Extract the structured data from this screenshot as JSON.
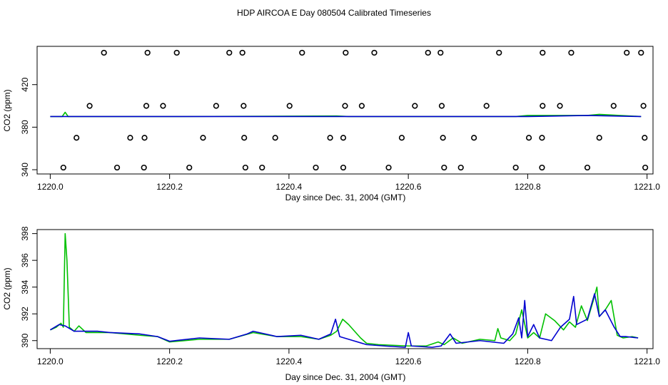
{
  "title": "HDP AIRCOA E  Day 080504  Calibrated Timeseries",
  "chart_data": [
    {
      "type": "scatter",
      "xlabel": "Day since Dec. 31, 2004 (GMT)",
      "ylabel": "CO2 (ppm)",
      "xlim": [
        1219.978,
        1221.01
      ],
      "ylim": [
        336,
        456
      ],
      "xticks": [
        "1220.0",
        "1220.2",
        "1220.4",
        "1220.6",
        "1220.8",
        "1221.0"
      ],
      "yticks": [
        "340",
        "380",
        "420"
      ],
      "flat_level": 390,
      "series": [
        {
          "color": "#00c000",
          "values": [
            [
              1220.0,
              390
            ],
            [
              1220.02,
              390
            ],
            [
              1220.025,
              394
            ],
            [
              1220.03,
              390
            ],
            [
              1220.2,
              390
            ],
            [
              1220.48,
              390.5
            ],
            [
              1220.5,
              390
            ],
            [
              1220.78,
              390
            ],
            [
              1220.8,
              391
            ],
            [
              1220.9,
              391
            ],
            [
              1220.92,
              392
            ],
            [
              1220.99,
              390
            ]
          ]
        },
        {
          "color": "#0000d0",
          "values": [
            [
              1220.0,
              390
            ],
            [
              1220.2,
              390
            ],
            [
              1220.5,
              390
            ],
            [
              1220.8,
              390
            ],
            [
              1220.9,
              391
            ],
            [
              1220.99,
              390
            ]
          ]
        }
      ],
      "points_x": [
        [
          1220.09,
          1220.163,
          1220.212,
          1220.3,
          1220.322,
          1220.422,
          1220.495,
          1220.543,
          1220.633,
          1220.654,
          1220.752,
          1220.825,
          1220.873,
          1220.966,
          1220.99
        ],
        [
          1220.066,
          1220.161,
          1220.189,
          1220.278,
          1220.324,
          1220.401,
          1220.494,
          1220.522,
          1220.611,
          1220.656,
          1220.731,
          1220.825,
          1220.854,
          1220.944,
          1220.994
        ],
        [
          1220.044,
          1220.134,
          1220.158,
          1220.256,
          1220.325,
          1220.377,
          1220.469,
          1220.491,
          1220.589,
          1220.658,
          1220.71,
          1220.802,
          1220.824,
          1220.92,
          1220.996
        ],
        [
          1220.022,
          1220.112,
          1220.157,
          1220.233,
          1220.327,
          1220.355,
          1220.445,
          1220.491,
          1220.567,
          1220.66,
          1220.688,
          1220.78,
          1220.824,
          1220.9,
          1220.997
        ]
      ],
      "points_y": [
        450,
        400,
        370,
        342
      ]
    },
    {
      "type": "line",
      "xlabel": "Day since Dec. 31, 2004 (GMT)",
      "ylabel": "CO2 (ppm)",
      "xlim": [
        1219.978,
        1221.01
      ],
      "ylim": [
        389.4,
        398.3
      ],
      "xticks": [
        "1220.0",
        "1220.2",
        "1220.4",
        "1220.6",
        "1220.8",
        "1221.0"
      ],
      "yticks": [
        "390",
        "392",
        "394",
        "396",
        "398"
      ],
      "series": [
        {
          "color": "#00c000",
          "values": [
            [
              1220.0,
              390.8
            ],
            [
              1220.01,
              391.0
            ],
            [
              1220.018,
              391.3
            ],
            [
              1220.022,
              391.0
            ],
            [
              1220.025,
              398.0
            ],
            [
              1220.028,
              396.0
            ],
            [
              1220.032,
              391.0
            ],
            [
              1220.04,
              390.7
            ],
            [
              1220.048,
              391.1
            ],
            [
              1220.06,
              390.6
            ],
            [
              1220.1,
              390.6
            ],
            [
              1220.15,
              390.4
            ],
            [
              1220.18,
              390.3
            ],
            [
              1220.2,
              389.9
            ],
            [
              1220.25,
              390.1
            ],
            [
              1220.3,
              390.1
            ],
            [
              1220.34,
              390.6
            ],
            [
              1220.38,
              390.3
            ],
            [
              1220.42,
              390.3
            ],
            [
              1220.45,
              390.1
            ],
            [
              1220.47,
              390.4
            ],
            [
              1220.48,
              390.7
            ],
            [
              1220.49,
              391.6
            ],
            [
              1220.5,
              391.2
            ],
            [
              1220.52,
              390.2
            ],
            [
              1220.53,
              389.8
            ],
            [
              1220.55,
              389.7
            ],
            [
              1220.6,
              389.6
            ],
            [
              1220.63,
              389.6
            ],
            [
              1220.65,
              389.9
            ],
            [
              1220.66,
              389.7
            ],
            [
              1220.675,
              390.2
            ],
            [
              1220.69,
              389.8
            ],
            [
              1220.72,
              390.1
            ],
            [
              1220.745,
              390.0
            ],
            [
              1220.75,
              390.9
            ],
            [
              1220.755,
              390.2
            ],
            [
              1220.77,
              390.0
            ],
            [
              1220.78,
              390.5
            ],
            [
              1220.79,
              392.3
            ],
            [
              1220.8,
              390.2
            ],
            [
              1220.81,
              390.6
            ],
            [
              1220.82,
              390.2
            ],
            [
              1220.83,
              392.0
            ],
            [
              1220.845,
              391.5
            ],
            [
              1220.86,
              390.8
            ],
            [
              1220.87,
              391.4
            ],
            [
              1220.88,
              391.0
            ],
            [
              1220.89,
              392.6
            ],
            [
              1220.9,
              391.5
            ],
            [
              1220.91,
              393.0
            ],
            [
              1220.916,
              394.0
            ],
            [
              1220.92,
              391.8
            ],
            [
              1220.93,
              392.3
            ],
            [
              1220.94,
              393.0
            ],
            [
              1220.95,
              390.4
            ],
            [
              1220.96,
              390.2
            ],
            [
              1220.975,
              390.3
            ],
            [
              1220.985,
              390.2
            ]
          ]
        },
        {
          "color": "#0000d0",
          "values": [
            [
              1220.0,
              390.8
            ],
            [
              1220.015,
              391.2
            ],
            [
              1220.025,
              391.1
            ],
            [
              1220.04,
              390.7
            ],
            [
              1220.08,
              390.7
            ],
            [
              1220.1,
              390.6
            ],
            [
              1220.15,
              390.5
            ],
            [
              1220.18,
              390.3
            ],
            [
              1220.2,
              389.95
            ],
            [
              1220.25,
              390.2
            ],
            [
              1220.3,
              390.1
            ],
            [
              1220.33,
              390.5
            ],
            [
              1220.34,
              390.7
            ],
            [
              1220.38,
              390.3
            ],
            [
              1220.42,
              390.4
            ],
            [
              1220.45,
              390.1
            ],
            [
              1220.47,
              390.5
            ],
            [
              1220.478,
              391.6
            ],
            [
              1220.485,
              390.3
            ],
            [
              1220.5,
              390.1
            ],
            [
              1220.53,
              389.7
            ],
            [
              1220.56,
              389.6
            ],
            [
              1220.595,
              389.5
            ],
            [
              1220.6,
              390.6
            ],
            [
              1220.605,
              389.6
            ],
            [
              1220.64,
              389.5
            ],
            [
              1220.655,
              389.6
            ],
            [
              1220.67,
              390.5
            ],
            [
              1220.68,
              389.8
            ],
            [
              1220.72,
              390.0
            ],
            [
              1220.76,
              389.8
            ],
            [
              1220.775,
              390.5
            ],
            [
              1220.785,
              391.7
            ],
            [
              1220.79,
              390.2
            ],
            [
              1220.795,
              393.0
            ],
            [
              1220.8,
              390.3
            ],
            [
              1220.81,
              391.2
            ],
            [
              1220.82,
              390.2
            ],
            [
              1220.84,
              390.0
            ],
            [
              1220.855,
              391.0
            ],
            [
              1220.87,
              391.6
            ],
            [
              1220.877,
              393.3
            ],
            [
              1220.882,
              391.2
            ],
            [
              1220.9,
              391.6
            ],
            [
              1220.912,
              393.5
            ],
            [
              1220.92,
              391.8
            ],
            [
              1220.93,
              392.3
            ],
            [
              1220.945,
              391.0
            ],
            [
              1220.955,
              390.3
            ],
            [
              1220.965,
              390.3
            ],
            [
              1220.985,
              390.2
            ]
          ]
        }
      ]
    }
  ]
}
